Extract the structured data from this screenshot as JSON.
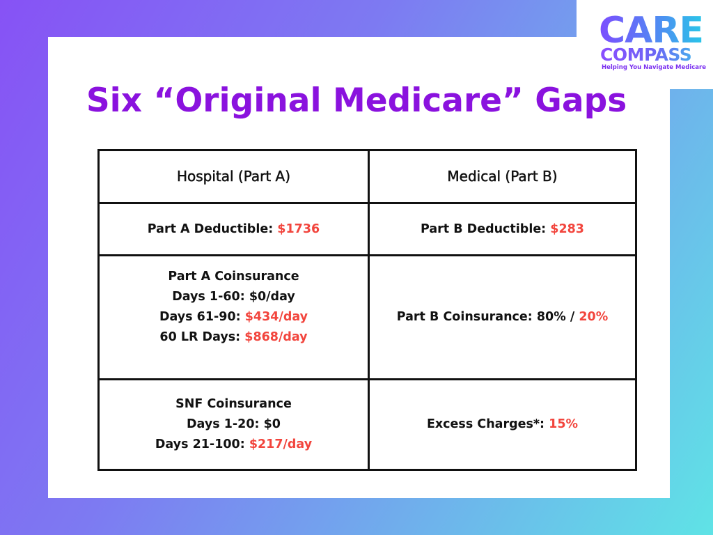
{
  "logo": {
    "line1": "CARE",
    "line2": "COMPASS",
    "tagline": "Helping You Navigate Medicare"
  },
  "title": "Six “Original Medicare” Gaps",
  "colors": {
    "title": "#8a12de",
    "highlight": "#f2453d",
    "text": "#111111",
    "border": "#111111",
    "gradient_start": "#8752f5",
    "gradient_end": "#5fe3e6"
  },
  "table": {
    "headers": [
      "Hospital (Part A)",
      "Medical (Part B)"
    ],
    "part_a": {
      "deductible_label": "Part A Deductible: ",
      "deductible_value": "$1736",
      "coinsurance_title": "Part A Coinsurance",
      "days_1_60": "Days 1-60: $0/day",
      "days_61_90_label": "Days 61-90: ",
      "days_61_90_value": "$434/day",
      "lr_days_label": "60 LR Days: ",
      "lr_days_value": "$868/day",
      "snf_title": "SNF Coinsurance",
      "snf_days_1_20": "Days 1-20: $0",
      "snf_days_21_100_label": "Days 21-100: ",
      "snf_days_21_100_value": "$217/day"
    },
    "part_b": {
      "deductible_label": "Part B Deductible: ",
      "deductible_value": "$283",
      "coinsurance_label": "Part B Coinsurance: 80% / ",
      "coinsurance_value": "20%",
      "excess_label": "Excess Charges*: ",
      "excess_value": "15%"
    }
  }
}
